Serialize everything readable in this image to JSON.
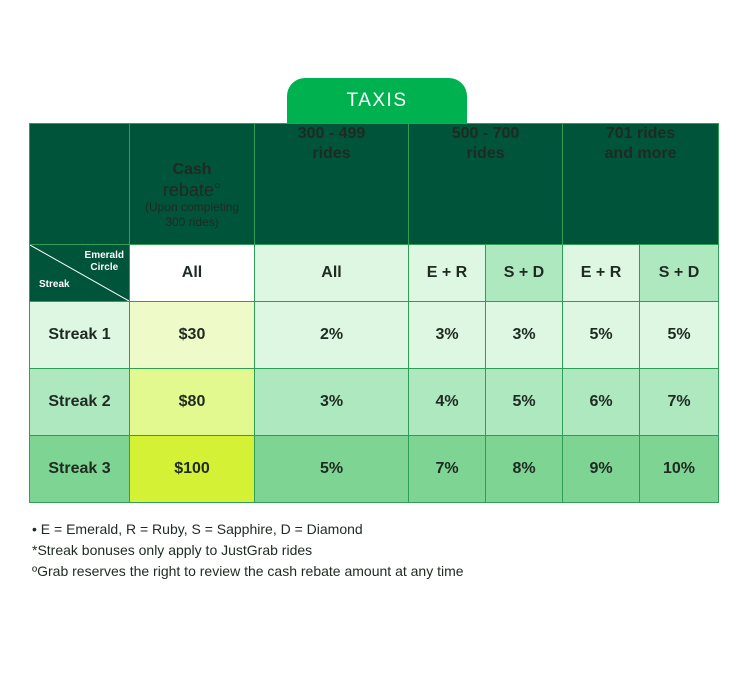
{
  "tab": {
    "label": "TAXIS"
  },
  "header": {
    "cash_line1": "Cash",
    "cash_line2": "rebate°",
    "cash_note_line1": "(Upon completing",
    "cash_note_line2": "300 rides)",
    "col1_line1": "300 - 499",
    "col1_line2": "rides",
    "col2_line1": "500 - 700",
    "col2_line2": "rides",
    "col3_line1": "701 rides",
    "col3_line2": "and more"
  },
  "corner": {
    "emerald_line1": "Emerald",
    "emerald_line2": "Circle",
    "streak": "Streak"
  },
  "subheader": [
    "All",
    "All",
    "E + R",
    "S + D",
    "E + R",
    "S + D"
  ],
  "rows": [
    {
      "label": "Streak 1",
      "cells": [
        "$30",
        "2%",
        "3%",
        "3%",
        "5%",
        "5%"
      ]
    },
    {
      "label": "Streak 2",
      "cells": [
        "$80",
        "3%",
        "4%",
        "5%",
        "6%",
        "7%"
      ]
    },
    {
      "label": "Streak 3",
      "cells": [
        "$100",
        "5%",
        "7%",
        "8%",
        "9%",
        "10%"
      ]
    }
  ],
  "colors": {
    "dark_green": "#00543a",
    "tab_green": "#00b14f",
    "row1_cash": "#eefac8",
    "row2_cash": "#e2f98f",
    "row3_cash": "#d4f135"
  },
  "footnotes": [
    "• E = Emerald, R = Ruby, S = Sapphire, D = Diamond",
    "*Streak bonuses only apply to JustGrab rides",
    "ºGrab reserves the right to review the cash rebate amount at any time"
  ]
}
